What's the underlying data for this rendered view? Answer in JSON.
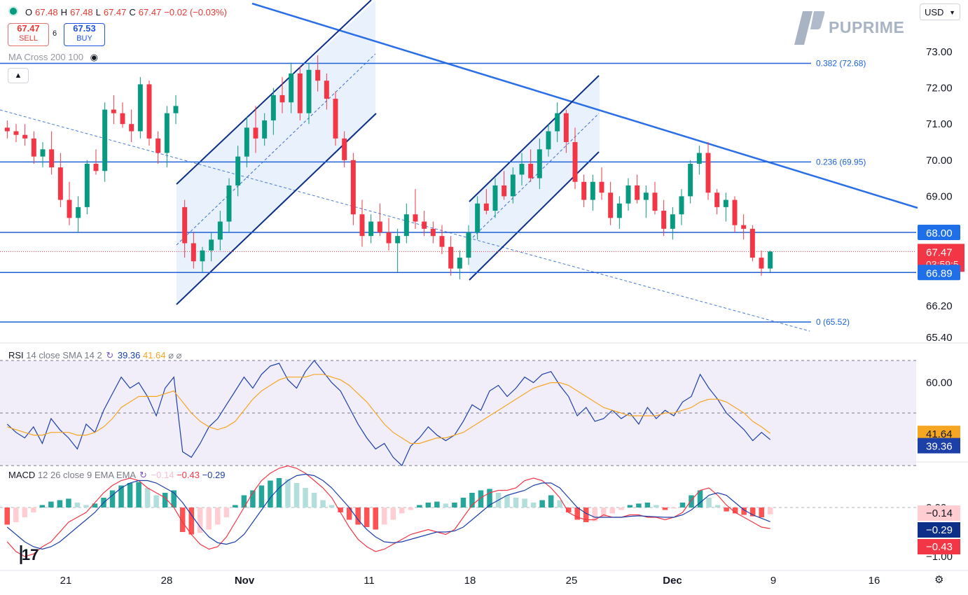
{
  "header": {
    "ohlc": {
      "o_label": "O",
      "o": "67.48",
      "h_label": "H",
      "h": "67.48",
      "l_label": "L",
      "l": "67.47",
      "c_label": "C",
      "c": "67.47",
      "change": "−0.02 (−0.03%)"
    },
    "sell_price": "67.47",
    "sell_label": "SELL",
    "spread": "6",
    "buy_price": "67.53",
    "buy_label": "BUY",
    "indicator": "MA Cross 200 100",
    "currency": "USD",
    "brand": "PUPRIME"
  },
  "colors": {
    "bull": "#089981",
    "bear": "#f23645",
    "trend": "#1e63d8",
    "channel": "#0d2f87",
    "rsi": "#1c3fa8",
    "rsi_ma": "#f5a623",
    "macd": "#1c3fa8",
    "signal": "#f23645"
  },
  "chart_data": [
    {
      "type": "candlestick",
      "x_labels": [
        "21",
        "28",
        "Nov",
        "11",
        "18",
        "25",
        "Dec",
        "9",
        "16"
      ],
      "ylim": [
        65.2,
        73.5
      ],
      "y_ticks": [
        "73.00",
        "72.00",
        "71.00",
        "70.00",
        "69.00",
        "66.20",
        "65.40"
      ],
      "candles": [
        [
          70.9,
          71.1,
          70.6,
          70.8
        ],
        [
          70.8,
          71.0,
          70.5,
          70.7
        ],
        [
          70.7,
          71.0,
          70.4,
          70.6
        ],
        [
          70.6,
          70.8,
          69.9,
          70.1
        ],
        [
          70.1,
          70.5,
          69.8,
          70.3
        ],
        [
          70.3,
          70.8,
          69.6,
          69.8
        ],
        [
          69.8,
          70.2,
          68.7,
          68.9
        ],
        [
          68.9,
          69.4,
          68.2,
          68.4
        ],
        [
          68.4,
          69.0,
          68.0,
          68.7
        ],
        [
          68.7,
          70.0,
          68.5,
          69.9
        ],
        [
          69.9,
          70.3,
          69.6,
          69.7
        ],
        [
          69.7,
          71.6,
          69.4,
          71.4
        ],
        [
          71.4,
          71.8,
          71.0,
          71.3
        ],
        [
          71.3,
          71.6,
          70.9,
          71.0
        ],
        [
          71.0,
          71.4,
          70.5,
          70.8
        ],
        [
          70.8,
          72.3,
          70.6,
          72.1
        ],
        [
          72.1,
          72.2,
          70.4,
          70.6
        ],
        [
          70.6,
          70.8,
          69.9,
          70.2
        ],
        [
          70.2,
          71.5,
          69.8,
          71.3
        ],
        [
          71.3,
          71.8,
          71.0,
          71.5
        ],
        [
          68.7,
          68.9,
          67.3,
          67.7
        ],
        [
          67.7,
          68.0,
          67.0,
          67.2
        ],
        [
          67.2,
          67.6,
          66.9,
          67.5
        ],
        [
          67.5,
          68.0,
          67.2,
          67.8
        ],
        [
          67.8,
          68.6,
          67.5,
          68.3
        ],
        [
          68.3,
          69.5,
          68.0,
          69.3
        ],
        [
          69.3,
          70.4,
          69.0,
          70.1
        ],
        [
          70.1,
          71.2,
          69.8,
          70.9
        ],
        [
          70.9,
          71.5,
          70.2,
          70.6
        ],
        [
          70.6,
          71.3,
          70.4,
          71.1
        ],
        [
          71.1,
          72.0,
          70.7,
          71.8
        ],
        [
          71.8,
          72.3,
          71.3,
          71.6
        ],
        [
          71.6,
          72.7,
          71.3,
          72.4
        ],
        [
          72.4,
          72.6,
          71.1,
          71.3
        ],
        [
          71.3,
          72.7,
          71.0,
          72.5
        ],
        [
          72.5,
          72.9,
          71.9,
          72.2
        ],
        [
          72.2,
          72.4,
          71.4,
          71.7
        ],
        [
          71.7,
          71.9,
          70.4,
          70.6
        ],
        [
          70.6,
          70.8,
          69.8,
          70.0
        ],
        [
          70.0,
          70.2,
          68.2,
          68.5
        ],
        [
          68.5,
          68.9,
          67.6,
          67.9
        ],
        [
          67.9,
          68.5,
          67.7,
          68.3
        ],
        [
          68.3,
          68.8,
          67.9,
          68.0
        ],
        [
          68.0,
          68.4,
          67.5,
          67.7
        ],
        [
          67.7,
          68.1,
          66.9,
          67.9
        ],
        [
          67.9,
          68.8,
          67.7,
          68.5
        ],
        [
          68.5,
          69.2,
          68.1,
          68.3
        ],
        [
          68.3,
          68.6,
          67.9,
          68.1
        ],
        [
          68.1,
          68.3,
          67.7,
          67.9
        ],
        [
          67.9,
          68.2,
          67.4,
          67.6
        ],
        [
          67.6,
          67.9,
          66.8,
          67.0
        ],
        [
          67.0,
          67.5,
          66.7,
          67.3
        ],
        [
          67.3,
          68.2,
          67.1,
          68.0
        ],
        [
          68.0,
          69.0,
          67.8,
          68.8
        ],
        [
          68.8,
          69.2,
          68.5,
          68.6
        ],
        [
          68.6,
          69.5,
          68.4,
          69.3
        ],
        [
          69.3,
          69.7,
          68.9,
          69.0
        ],
        [
          69.0,
          69.8,
          68.8,
          69.6
        ],
        [
          69.6,
          70.2,
          69.3,
          69.9
        ],
        [
          69.9,
          70.3,
          69.4,
          69.5
        ],
        [
          69.5,
          70.6,
          69.2,
          70.3
        ],
        [
          70.3,
          71.0,
          70.1,
          70.8
        ],
        [
          70.8,
          71.6,
          70.5,
          71.3
        ],
        [
          71.3,
          71.4,
          70.2,
          70.5
        ],
        [
          70.5,
          70.9,
          69.2,
          69.4
        ],
        [
          69.4,
          69.6,
          68.7,
          68.9
        ],
        [
          68.9,
          69.6,
          68.6,
          69.4
        ],
        [
          69.4,
          69.8,
          68.9,
          69.1
        ],
        [
          69.1,
          69.4,
          68.2,
          68.4
        ],
        [
          68.4,
          69.0,
          68.1,
          68.8
        ],
        [
          68.8,
          69.5,
          68.6,
          69.3
        ],
        [
          69.3,
          69.6,
          68.8,
          68.9
        ],
        [
          68.9,
          69.3,
          68.4,
          69.1
        ],
        [
          69.1,
          69.4,
          68.5,
          68.6
        ],
        [
          68.6,
          68.9,
          67.9,
          68.1
        ],
        [
          68.1,
          68.7,
          67.8,
          68.5
        ],
        [
          68.5,
          69.2,
          68.2,
          69.0
        ],
        [
          69.0,
          70.0,
          68.8,
          69.9
        ],
        [
          69.9,
          70.4,
          69.6,
          70.2
        ],
        [
          70.2,
          70.5,
          68.9,
          69.1
        ],
        [
          69.1,
          69.2,
          68.5,
          68.7
        ],
        [
          68.7,
          69.1,
          68.3,
          68.9
        ],
        [
          68.9,
          69.0,
          68.0,
          68.2
        ],
        [
          68.2,
          68.5,
          67.8,
          68.1
        ],
        [
          68.1,
          68.2,
          67.2,
          67.3
        ],
        [
          67.3,
          67.5,
          66.8,
          67.0
        ],
        [
          67.0,
          67.5,
          66.9,
          67.47
        ]
      ],
      "series": [
        {
          "name": "0.382 (72.68)",
          "values": [
            72.68
          ]
        },
        {
          "name": "0.236 (69.95)",
          "values": [
            69.95
          ]
        },
        {
          "name": "0 (65.52)",
          "values": [
            65.52
          ]
        }
      ],
      "levels": [
        {
          "label": "68.00",
          "value": 68.0
        },
        {
          "label": "67.47",
          "value": 67.47
        },
        {
          "label": "66.89",
          "value": 66.89
        }
      ],
      "countdown": "03:59:5"
    },
    {
      "type": "line",
      "title": "RSI",
      "params": "14 close SMA 14 2",
      "rsi_value": "39.36",
      "rsi_ma_value": "41.64",
      "ylim": [
        25,
        70
      ],
      "y_ticks": [
        "60.00"
      ],
      "series": [
        {
          "name": "RSI",
          "values": [
            45,
            42,
            40,
            44,
            38,
            47,
            43,
            40,
            36,
            45,
            42,
            50,
            56,
            62,
            58,
            60,
            55,
            48,
            58,
            62,
            35,
            33,
            38,
            44,
            47,
            52,
            57,
            62,
            58,
            63,
            66,
            67,
            61,
            58,
            64,
            68,
            64,
            60,
            57,
            51,
            45,
            40,
            36,
            38,
            33,
            30,
            37,
            40,
            44,
            41,
            39,
            41,
            46,
            52,
            50,
            57,
            59,
            55,
            58,
            62,
            60,
            63,
            64,
            59,
            55,
            48,
            51,
            46,
            47,
            50,
            47,
            49,
            45,
            51,
            47,
            50,
            48,
            53,
            55,
            63,
            58,
            54,
            49,
            46,
            43,
            39,
            42,
            39.36
          ]
        },
        {
          "name": "MA",
          "values": [
            44,
            43,
            42,
            41,
            41,
            42,
            42,
            42,
            41,
            41,
            42,
            44,
            47,
            51,
            53,
            55,
            55,
            55,
            56,
            57,
            53,
            49,
            46,
            44,
            43,
            44,
            46,
            50,
            54,
            57,
            59,
            61,
            62,
            62,
            62,
            63,
            63,
            62,
            61,
            59,
            56,
            53,
            49,
            45,
            42,
            40,
            38,
            38,
            39,
            40,
            40,
            41,
            42,
            44,
            46,
            48,
            50,
            52,
            54,
            56,
            58,
            59,
            60,
            60,
            59,
            57,
            55,
            53,
            51,
            50,
            49,
            48,
            48,
            48,
            48,
            49,
            49,
            50,
            51,
            53,
            54,
            54,
            53,
            51,
            49,
            46,
            44,
            41.64
          ]
        }
      ]
    },
    {
      "type": "bar",
      "title": "MACD",
      "params": "12 26 close 9 EMA EMA",
      "hist_value": "−0.14",
      "macd_value": "−0.43",
      "signal_value": "−0.29",
      "y_ticks": [
        "0.00",
        "−1.00"
      ],
      "ylim": [
        -1.15,
        1.1
      ],
      "histogram": [
        -0.35,
        -0.3,
        -0.2,
        -0.1,
        0.05,
        0.12,
        0.15,
        0.18,
        0.1,
        0.05,
        0.08,
        0.2,
        0.35,
        0.45,
        0.5,
        0.52,
        0.4,
        0.25,
        0.3,
        0.35,
        -0.5,
        -0.55,
        -0.52,
        -0.45,
        -0.35,
        -0.2,
        0.05,
        0.25,
        0.35,
        0.45,
        0.55,
        0.6,
        0.58,
        0.5,
        0.4,
        0.3,
        0.15,
        0.05,
        -0.1,
        -0.25,
        -0.35,
        -0.4,
        -0.45,
        -0.35,
        -0.25,
        -0.12,
        -0.05,
        0.05,
        0.1,
        0.12,
        0.08,
        0.1,
        0.2,
        0.3,
        0.35,
        0.38,
        0.3,
        0.25,
        0.2,
        0.18,
        0.1,
        0.15,
        0.25,
        0.15,
        -0.1,
        -0.25,
        -0.3,
        -0.28,
        -0.2,
        -0.12,
        -0.05,
        0.05,
        0.08,
        0.1,
        0.05,
        -0.05,
        -0.02,
        0.1,
        0.25,
        0.35,
        0.2,
        0.05,
        -0.08,
        -0.12,
        -0.15,
        -0.18,
        -0.2,
        -0.14
      ],
      "series": [
        {
          "name": "MACD",
          "values": [
            -0.7,
            -0.9,
            -1.0,
            -0.95,
            -0.8,
            -0.7,
            -0.5,
            -0.3,
            -0.2,
            -0.1,
            0.1,
            0.3,
            0.45,
            0.55,
            0.6,
            0.55,
            0.4,
            0.3,
            0.2,
            0.0,
            -0.3,
            -0.55,
            -0.75,
            -0.85,
            -0.8,
            -0.6,
            -0.3,
            0.0,
            0.3,
            0.55,
            0.7,
            0.8,
            0.85,
            0.8,
            0.7,
            0.55,
            0.4,
            0.2,
            -0.1,
            -0.4,
            -0.65,
            -0.8,
            -0.9,
            -0.85,
            -0.75,
            -0.65,
            -0.55,
            -0.5,
            -0.45,
            -0.5,
            -0.55,
            -0.45,
            -0.2,
            0.05,
            0.2,
            0.3,
            0.35,
            0.35,
            0.4,
            0.55,
            0.6,
            0.55,
            0.4,
            0.2,
            -0.1,
            -0.2,
            -0.25,
            -0.25,
            -0.15,
            -0.2,
            -0.2,
            -0.15,
            -0.15,
            -0.2,
            -0.2,
            -0.25,
            -0.2,
            -0.1,
            0.15,
            0.35,
            0.4,
            0.25,
            0.05,
            -0.1,
            -0.2,
            -0.3,
            -0.4,
            -0.43
          ]
        },
        {
          "name": "Signal",
          "values": [
            -0.4,
            -0.55,
            -0.7,
            -0.8,
            -0.85,
            -0.8,
            -0.7,
            -0.55,
            -0.4,
            -0.25,
            -0.1,
            0.1,
            0.25,
            0.4,
            0.5,
            0.55,
            0.55,
            0.5,
            0.4,
            0.3,
            0.1,
            -0.15,
            -0.4,
            -0.6,
            -0.72,
            -0.75,
            -0.7,
            -0.55,
            -0.3,
            -0.05,
            0.2,
            0.4,
            0.55,
            0.65,
            0.68,
            0.65,
            0.55,
            0.4,
            0.2,
            0.0,
            -0.25,
            -0.45,
            -0.6,
            -0.7,
            -0.72,
            -0.7,
            -0.65,
            -0.6,
            -0.55,
            -0.5,
            -0.5,
            -0.48,
            -0.4,
            -0.25,
            -0.1,
            0.05,
            0.15,
            0.25,
            0.3,
            0.35,
            0.45,
            0.5,
            0.5,
            0.4,
            0.2,
            0.0,
            -0.12,
            -0.2,
            -0.2,
            -0.2,
            -0.2,
            -0.18,
            -0.17,
            -0.18,
            -0.19,
            -0.2,
            -0.2,
            -0.15,
            -0.05,
            0.1,
            0.25,
            0.3,
            0.25,
            0.1,
            -0.05,
            -0.15,
            -0.22,
            -0.29
          ]
        }
      ]
    }
  ]
}
